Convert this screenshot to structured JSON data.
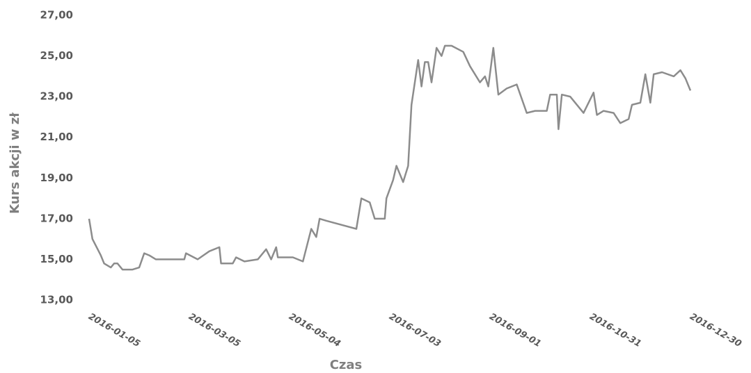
{
  "chart_data": {
    "type": "line",
    "x_label": "Czas",
    "y_label": "Kurs akcji w zł",
    "x": [
      "2016-01-05",
      "2016-01-07",
      "2016-01-12",
      "2016-01-14",
      "2016-01-18",
      "2016-01-20",
      "2016-01-22",
      "2016-01-25",
      "2016-01-31",
      "2016-02-04",
      "2016-02-07",
      "2016-02-10",
      "2016-02-14",
      "2016-03-02",
      "2016-03-03",
      "2016-03-10",
      "2016-03-17",
      "2016-03-23",
      "2016-03-24",
      "2016-03-31",
      "2016-04-02",
      "2016-04-07",
      "2016-04-15",
      "2016-04-20",
      "2016-04-23",
      "2016-04-26",
      "2016-04-27",
      "2016-05-06",
      "2016-05-12",
      "2016-05-17",
      "2016-05-20",
      "2016-05-22",
      "2016-05-26",
      "2016-06-13",
      "2016-06-16",
      "2016-06-21",
      "2016-06-24",
      "2016-06-30",
      "2016-07-01",
      "2016-07-05",
      "2016-07-07",
      "2016-07-11",
      "2016-07-14",
      "2016-07-16",
      "2016-07-20",
      "2016-07-22",
      "2016-07-24",
      "2016-07-26",
      "2016-07-28",
      "2016-07-31",
      "2016-08-03",
      "2016-08-05",
      "2016-08-09",
      "2016-08-16",
      "2016-08-20",
      "2016-08-26",
      "2016-08-29",
      "2016-08-31",
      "2016-09-03",
      "2016-09-06",
      "2016-09-11",
      "2016-09-17",
      "2016-09-23",
      "2016-09-28",
      "2016-10-05",
      "2016-10-07",
      "2016-10-11",
      "2016-10-12",
      "2016-10-14",
      "2016-10-19",
      "2016-10-27",
      "2016-11-02",
      "2016-11-04",
      "2016-11-08",
      "2016-11-14",
      "2016-11-18",
      "2016-11-23",
      "2016-11-25",
      "2016-11-30",
      "2016-12-03",
      "2016-12-06",
      "2016-12-08",
      "2016-12-13",
      "2016-12-20",
      "2016-12-24",
      "2016-12-27",
      "2016-12-30"
    ],
    "series": [
      {
        "color": "#8c8c8c",
        "values": [
          17.0,
          16.0,
          15.2,
          14.8,
          14.6,
          14.8,
          14.8,
          14.5,
          14.5,
          14.6,
          15.3,
          15.2,
          15.0,
          15.0,
          15.3,
          15.0,
          15.4,
          15.6,
          14.8,
          14.8,
          15.1,
          14.9,
          15.0,
          15.5,
          15.0,
          15.6,
          15.1,
          15.1,
          14.9,
          16.5,
          16.1,
          17.0,
          16.9,
          16.5,
          18.0,
          17.8,
          17.0,
          17.0,
          18.0,
          18.9,
          19.6,
          18.8,
          19.6,
          22.6,
          24.8,
          23.5,
          24.7,
          24.7,
          23.7,
          25.4,
          25.0,
          25.5,
          25.5,
          25.2,
          24.5,
          23.7,
          24.0,
          23.5,
          25.4,
          23.1,
          23.4,
          23.6,
          22.2,
          22.3,
          22.3,
          23.1,
          23.1,
          21.4,
          23.1,
          23.0,
          22.2,
          23.2,
          22.1,
          22.3,
          22.2,
          21.7,
          21.9,
          22.6,
          22.7,
          24.1,
          22.7,
          24.1,
          24.2,
          24.0,
          24.3,
          23.9,
          23.3
        ]
      }
    ],
    "xlim": [
      "2016-01-05",
      "2016-12-30"
    ],
    "xticks": [
      "2016-01-05",
      "2016-03-05",
      "2016-05-04",
      "2016-07-03",
      "2016-09-01",
      "2016-10-31",
      "2016-12-30"
    ],
    "ylim": [
      13,
      27
    ],
    "yticks": [
      {
        "value": 13,
        "label": "13,00"
      },
      {
        "value": 15,
        "label": "15,00"
      },
      {
        "value": 17,
        "label": "17,00"
      },
      {
        "value": 19,
        "label": "19,00"
      },
      {
        "value": 21,
        "label": "21,00"
      },
      {
        "value": 23,
        "label": "23,00"
      },
      {
        "value": 25,
        "label": "25,00"
      },
      {
        "value": 27,
        "label": "27,00"
      }
    ],
    "grid": false
  }
}
